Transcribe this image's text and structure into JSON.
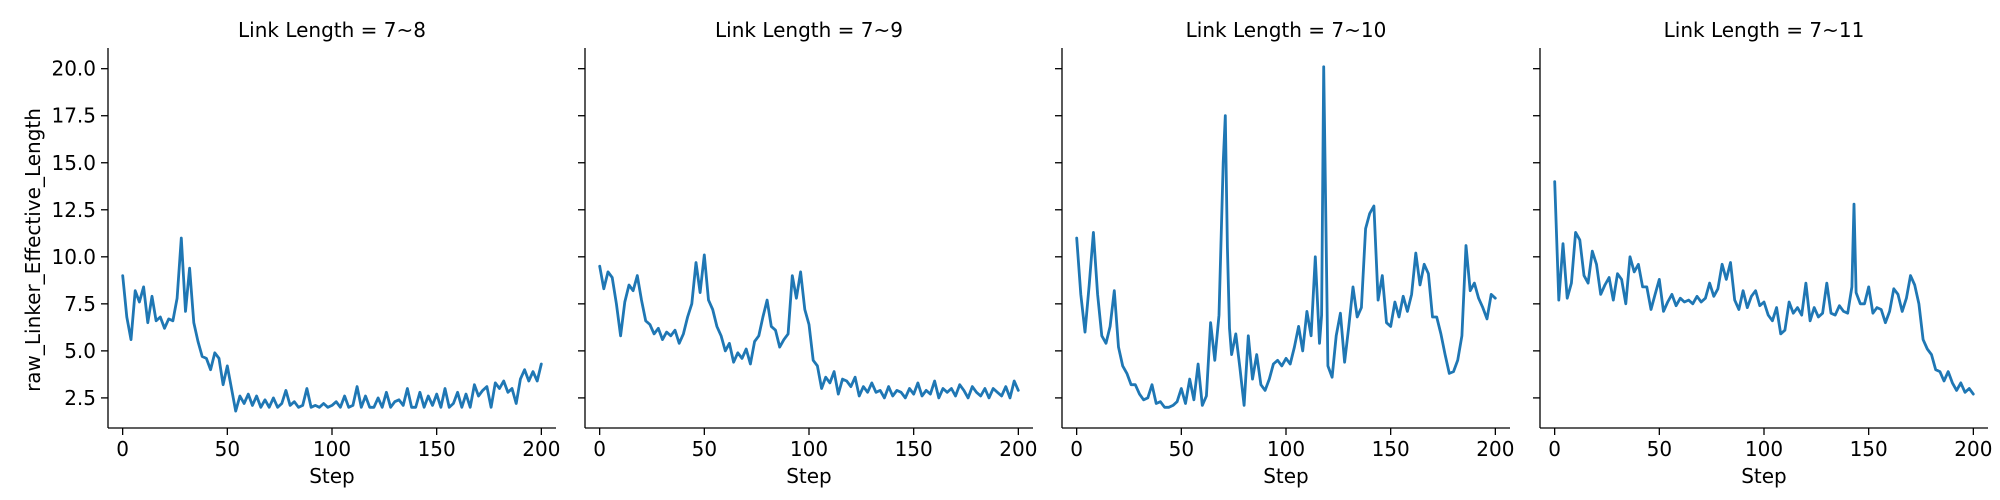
{
  "chart_data": {
    "type": "line",
    "layout": "facet-row",
    "color": "#1f77b4",
    "xlabel": "Step",
    "ylabel": "raw_Linker_Effective_Length",
    "xlim": [
      -7,
      207
    ],
    "ylim": [
      0.9,
      21.1
    ],
    "xticks": [
      0,
      50,
      100,
      150,
      200
    ],
    "yticks": [
      2.5,
      5.0,
      7.5,
      10.0,
      12.5,
      15.0,
      17.5,
      20.0
    ],
    "sharey": true,
    "grid": false,
    "panels": [
      {
        "title": "Link Length = 7~8",
        "x": [
          0,
          2,
          4,
          6,
          8,
          10,
          12,
          14,
          16,
          18,
          20,
          22,
          24,
          26,
          28,
          30,
          32,
          34,
          36,
          38,
          40,
          42,
          44,
          46,
          48,
          50,
          52,
          54,
          56,
          58,
          60,
          62,
          64,
          66,
          68,
          70,
          72,
          74,
          76,
          78,
          80,
          82,
          84,
          86,
          88,
          90,
          92,
          94,
          96,
          98,
          100,
          102,
          104,
          106,
          108,
          110,
          112,
          114,
          116,
          118,
          120,
          122,
          124,
          126,
          128,
          130,
          132,
          134,
          136,
          138,
          140,
          142,
          144,
          146,
          148,
          150,
          152,
          154,
          156,
          158,
          160,
          162,
          164,
          166,
          168,
          170,
          172,
          174,
          176,
          178,
          180,
          182,
          184,
          186,
          188,
          190,
          192,
          194,
          196,
          198,
          200
        ],
        "y": [
          9.0,
          6.8,
          5.6,
          8.2,
          7.6,
          8.4,
          6.5,
          7.9,
          6.6,
          6.8,
          6.2,
          6.7,
          6.6,
          7.8,
          11.0,
          7.1,
          9.4,
          6.5,
          5.5,
          4.7,
          4.6,
          4.0,
          4.9,
          4.6,
          3.2,
          4.2,
          3.0,
          1.8,
          2.6,
          2.2,
          2.7,
          2.1,
          2.6,
          2.0,
          2.4,
          2.0,
          2.5,
          2.0,
          2.2,
          2.9,
          2.1,
          2.3,
          2.0,
          2.1,
          3.0,
          2.0,
          2.1,
          2.0,
          2.2,
          2.0,
          2.1,
          2.3,
          2.0,
          2.6,
          2.0,
          2.1,
          3.1,
          2.0,
          2.6,
          2.0,
          2.0,
          2.5,
          2.0,
          2.8,
          2.0,
          2.3,
          2.4,
          2.1,
          3.0,
          2.0,
          2.0,
          2.8,
          2.0,
          2.6,
          2.1,
          2.7,
          2.0,
          3.0,
          2.0,
          2.2,
          2.8,
          2.0,
          2.7,
          2.0,
          3.2,
          2.6,
          2.9,
          3.1,
          2.0,
          3.3,
          3.0,
          3.4,
          2.8,
          3.0,
          2.2,
          3.5,
          4.0,
          3.4,
          3.9,
          3.4,
          4.3
        ]
      },
      {
        "title": "Link Length = 7~9",
        "x": [
          0,
          2,
          4,
          6,
          8,
          10,
          12,
          14,
          16,
          18,
          20,
          22,
          24,
          26,
          28,
          30,
          32,
          34,
          36,
          38,
          40,
          42,
          44,
          46,
          48,
          50,
          52,
          54,
          56,
          58,
          60,
          62,
          64,
          66,
          68,
          70,
          72,
          74,
          76,
          78,
          80,
          82,
          84,
          86,
          88,
          90,
          92,
          94,
          96,
          98,
          100,
          102,
          104,
          106,
          108,
          110,
          112,
          114,
          116,
          118,
          120,
          122,
          124,
          126,
          128,
          130,
          132,
          134,
          136,
          138,
          140,
          142,
          144,
          146,
          148,
          150,
          152,
          154,
          156,
          158,
          160,
          162,
          164,
          166,
          168,
          170,
          172,
          174,
          176,
          178,
          180,
          182,
          184,
          186,
          188,
          190,
          192,
          194,
          196,
          198,
          200
        ],
        "y": [
          9.5,
          8.3,
          9.2,
          8.9,
          7.5,
          5.8,
          7.6,
          8.5,
          8.2,
          9.0,
          7.7,
          6.6,
          6.4,
          5.9,
          6.2,
          5.6,
          6.0,
          5.8,
          6.1,
          5.4,
          5.9,
          6.8,
          7.5,
          9.7,
          8.1,
          10.1,
          7.7,
          7.2,
          6.3,
          5.8,
          5.0,
          5.4,
          4.4,
          4.9,
          4.6,
          5.1,
          4.3,
          5.5,
          5.8,
          6.8,
          7.7,
          6.3,
          6.1,
          5.2,
          5.6,
          5.9,
          9.0,
          7.8,
          9.2,
          7.2,
          6.4,
          4.5,
          4.2,
          3.0,
          3.6,
          3.3,
          3.9,
          2.7,
          3.5,
          3.4,
          3.1,
          3.6,
          2.6,
          3.1,
          2.8,
          3.3,
          2.8,
          2.9,
          2.5,
          3.1,
          2.6,
          2.9,
          2.8,
          2.5,
          3.0,
          2.7,
          3.3,
          2.6,
          2.9,
          2.7,
          3.4,
          2.5,
          3.0,
          2.8,
          3.0,
          2.6,
          3.2,
          2.9,
          2.5,
          3.1,
          2.8,
          2.6,
          3.0,
          2.5,
          3.0,
          2.8,
          2.6,
          3.1,
          2.5,
          3.4,
          2.9
        ]
      },
      {
        "title": "Link Length = 7~10",
        "x": [
          0,
          2,
          4,
          6,
          8,
          10,
          12,
          14,
          16,
          18,
          20,
          22,
          24,
          26,
          28,
          30,
          32,
          34,
          36,
          38,
          40,
          42,
          44,
          46,
          48,
          50,
          52,
          54,
          56,
          58,
          60,
          62,
          64,
          66,
          68,
          70,
          71,
          72,
          73,
          74,
          76,
          78,
          80,
          82,
          84,
          86,
          88,
          90,
          92,
          94,
          96,
          98,
          100,
          102,
          104,
          106,
          108,
          110,
          112,
          114,
          116,
          117,
          118,
          120,
          122,
          124,
          126,
          128,
          130,
          132,
          134,
          136,
          138,
          140,
          142,
          144,
          146,
          148,
          150,
          152,
          154,
          156,
          158,
          160,
          162,
          164,
          166,
          168,
          170,
          172,
          174,
          176,
          178,
          180,
          182,
          184,
          186,
          188,
          190,
          192,
          194,
          196,
          198,
          200
        ],
        "y": [
          11.0,
          8.0,
          6.0,
          8.5,
          11.3,
          8.0,
          5.8,
          5.4,
          6.3,
          8.2,
          5.2,
          4.2,
          3.8,
          3.2,
          3.2,
          2.7,
          2.4,
          2.5,
          3.2,
          2.2,
          2.3,
          2.0,
          2.0,
          2.1,
          2.3,
          3.0,
          2.2,
          3.5,
          2.4,
          4.3,
          2.1,
          2.6,
          6.5,
          4.5,
          6.9,
          15.0,
          17.5,
          10.5,
          6.2,
          4.8,
          5.9,
          4.1,
          2.1,
          5.8,
          3.5,
          4.8,
          3.2,
          2.9,
          3.5,
          4.3,
          4.5,
          4.2,
          4.6,
          4.3,
          5.2,
          6.3,
          5.0,
          7.1,
          5.8,
          10.0,
          5.4,
          6.9,
          20.1,
          4.2,
          3.6,
          5.8,
          7.0,
          4.4,
          6.3,
          8.4,
          6.8,
          7.3,
          11.5,
          12.3,
          12.7,
          7.7,
          9.0,
          6.5,
          6.3,
          7.6,
          6.8,
          7.9,
          7.1,
          8.0,
          10.2,
          8.5,
          9.6,
          9.1,
          6.8,
          6.8,
          5.9,
          4.8,
          3.8,
          3.9,
          4.5,
          5.8,
          10.6,
          8.2,
          8.6,
          7.8,
          7.3,
          6.7,
          8.0,
          7.8
        ]
      },
      {
        "title": "Link Length = 7~11",
        "x": [
          0,
          2,
          4,
          6,
          8,
          10,
          12,
          14,
          16,
          18,
          20,
          22,
          24,
          26,
          28,
          30,
          32,
          34,
          36,
          38,
          40,
          42,
          44,
          46,
          48,
          50,
          52,
          54,
          56,
          58,
          60,
          62,
          64,
          66,
          68,
          70,
          72,
          74,
          76,
          78,
          80,
          82,
          84,
          86,
          88,
          90,
          92,
          94,
          96,
          98,
          100,
          102,
          104,
          106,
          108,
          110,
          112,
          114,
          116,
          118,
          120,
          122,
          124,
          126,
          128,
          130,
          132,
          134,
          136,
          138,
          140,
          142,
          143,
          144,
          146,
          148,
          150,
          152,
          154,
          156,
          158,
          160,
          162,
          164,
          166,
          168,
          170,
          172,
          174,
          176,
          178,
          180,
          182,
          184,
          186,
          188,
          190,
          192,
          194,
          196,
          198,
          200
        ],
        "y": [
          14.0,
          7.7,
          10.7,
          7.8,
          8.6,
          11.3,
          10.9,
          9.0,
          8.6,
          10.3,
          9.6,
          8.0,
          8.5,
          8.9,
          7.7,
          9.1,
          8.8,
          7.5,
          10.0,
          9.2,
          9.6,
          8.4,
          8.4,
          7.2,
          8.0,
          8.8,
          7.1,
          7.6,
          8.0,
          7.4,
          7.8,
          7.6,
          7.7,
          7.5,
          7.9,
          7.6,
          7.8,
          8.6,
          7.9,
          8.3,
          9.6,
          8.8,
          9.7,
          7.7,
          7.2,
          8.2,
          7.3,
          7.9,
          8.2,
          7.4,
          7.6,
          6.9,
          6.6,
          7.3,
          5.9,
          6.1,
          7.6,
          7.0,
          7.3,
          6.9,
          8.6,
          6.6,
          7.3,
          6.8,
          7.0,
          8.6,
          7.0,
          6.9,
          7.4,
          7.1,
          7.0,
          8.4,
          12.8,
          8.1,
          7.5,
          7.5,
          8.4,
          7.0,
          7.3,
          7.2,
          6.5,
          7.1,
          8.3,
          8.0,
          7.1,
          7.8,
          9.0,
          8.5,
          7.5,
          5.6,
          5.1,
          4.8,
          4.0,
          3.9,
          3.4,
          3.9,
          3.3,
          2.9,
          3.3,
          2.8,
          3.0,
          2.7
        ]
      }
    ]
  }
}
